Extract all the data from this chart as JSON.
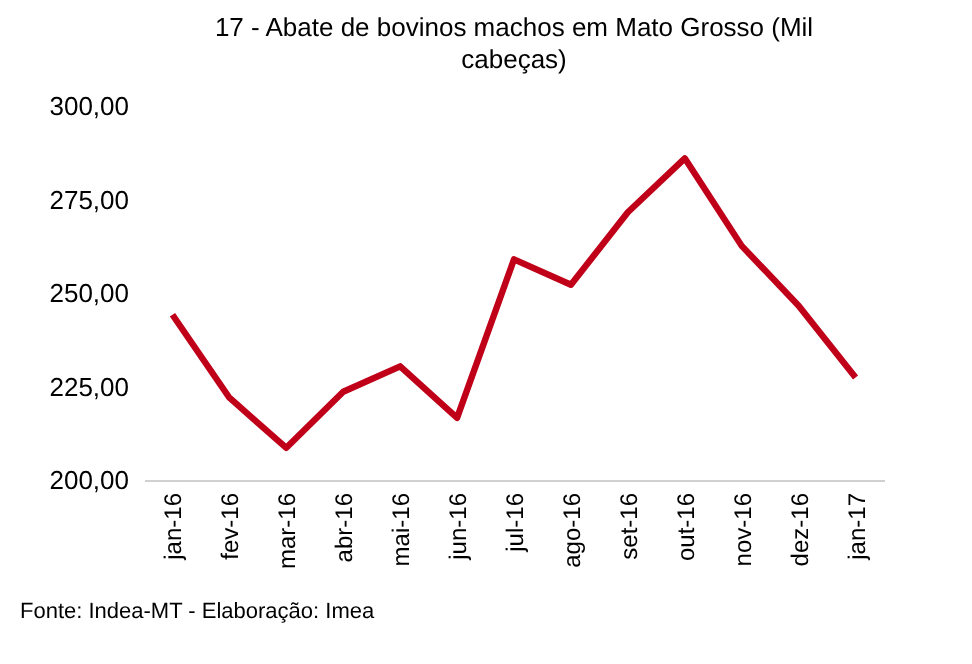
{
  "chart_data": {
    "type": "line",
    "title": "17 - Abate de bovinos machos em Mato Grosso (Mil cabeças)",
    "categories": [
      "jan-16",
      "fev-16",
      "mar-16",
      "abr-16",
      "mai-16",
      "jun-16",
      "jul-16",
      "ago-16",
      "set-16",
      "out-16",
      "nov-16",
      "dez-16",
      "jan-17"
    ],
    "series": [
      {
        "color": "#c00018",
        "values": [
          244.2,
          222.0,
          208.6,
          223.6,
          230.4,
          216.6,
          259.0,
          252.2,
          271.6,
          286.0,
          262.6,
          246.6,
          227.4
        ]
      }
    ],
    "ylim": [
      200,
      300
    ],
    "yticks": [
      {
        "value": 200,
        "label": "200,00"
      },
      {
        "value": 225,
        "label": "225,00"
      },
      {
        "value": 250,
        "label": "250,00"
      },
      {
        "value": 275,
        "label": "275,00"
      },
      {
        "value": 300,
        "label": "300,00"
      }
    ],
    "grid": false,
    "marker": "none",
    "line_style": "solid",
    "annotations": [
      "Fonte: Indea-MT - Elaboração: Imea"
    ]
  }
}
